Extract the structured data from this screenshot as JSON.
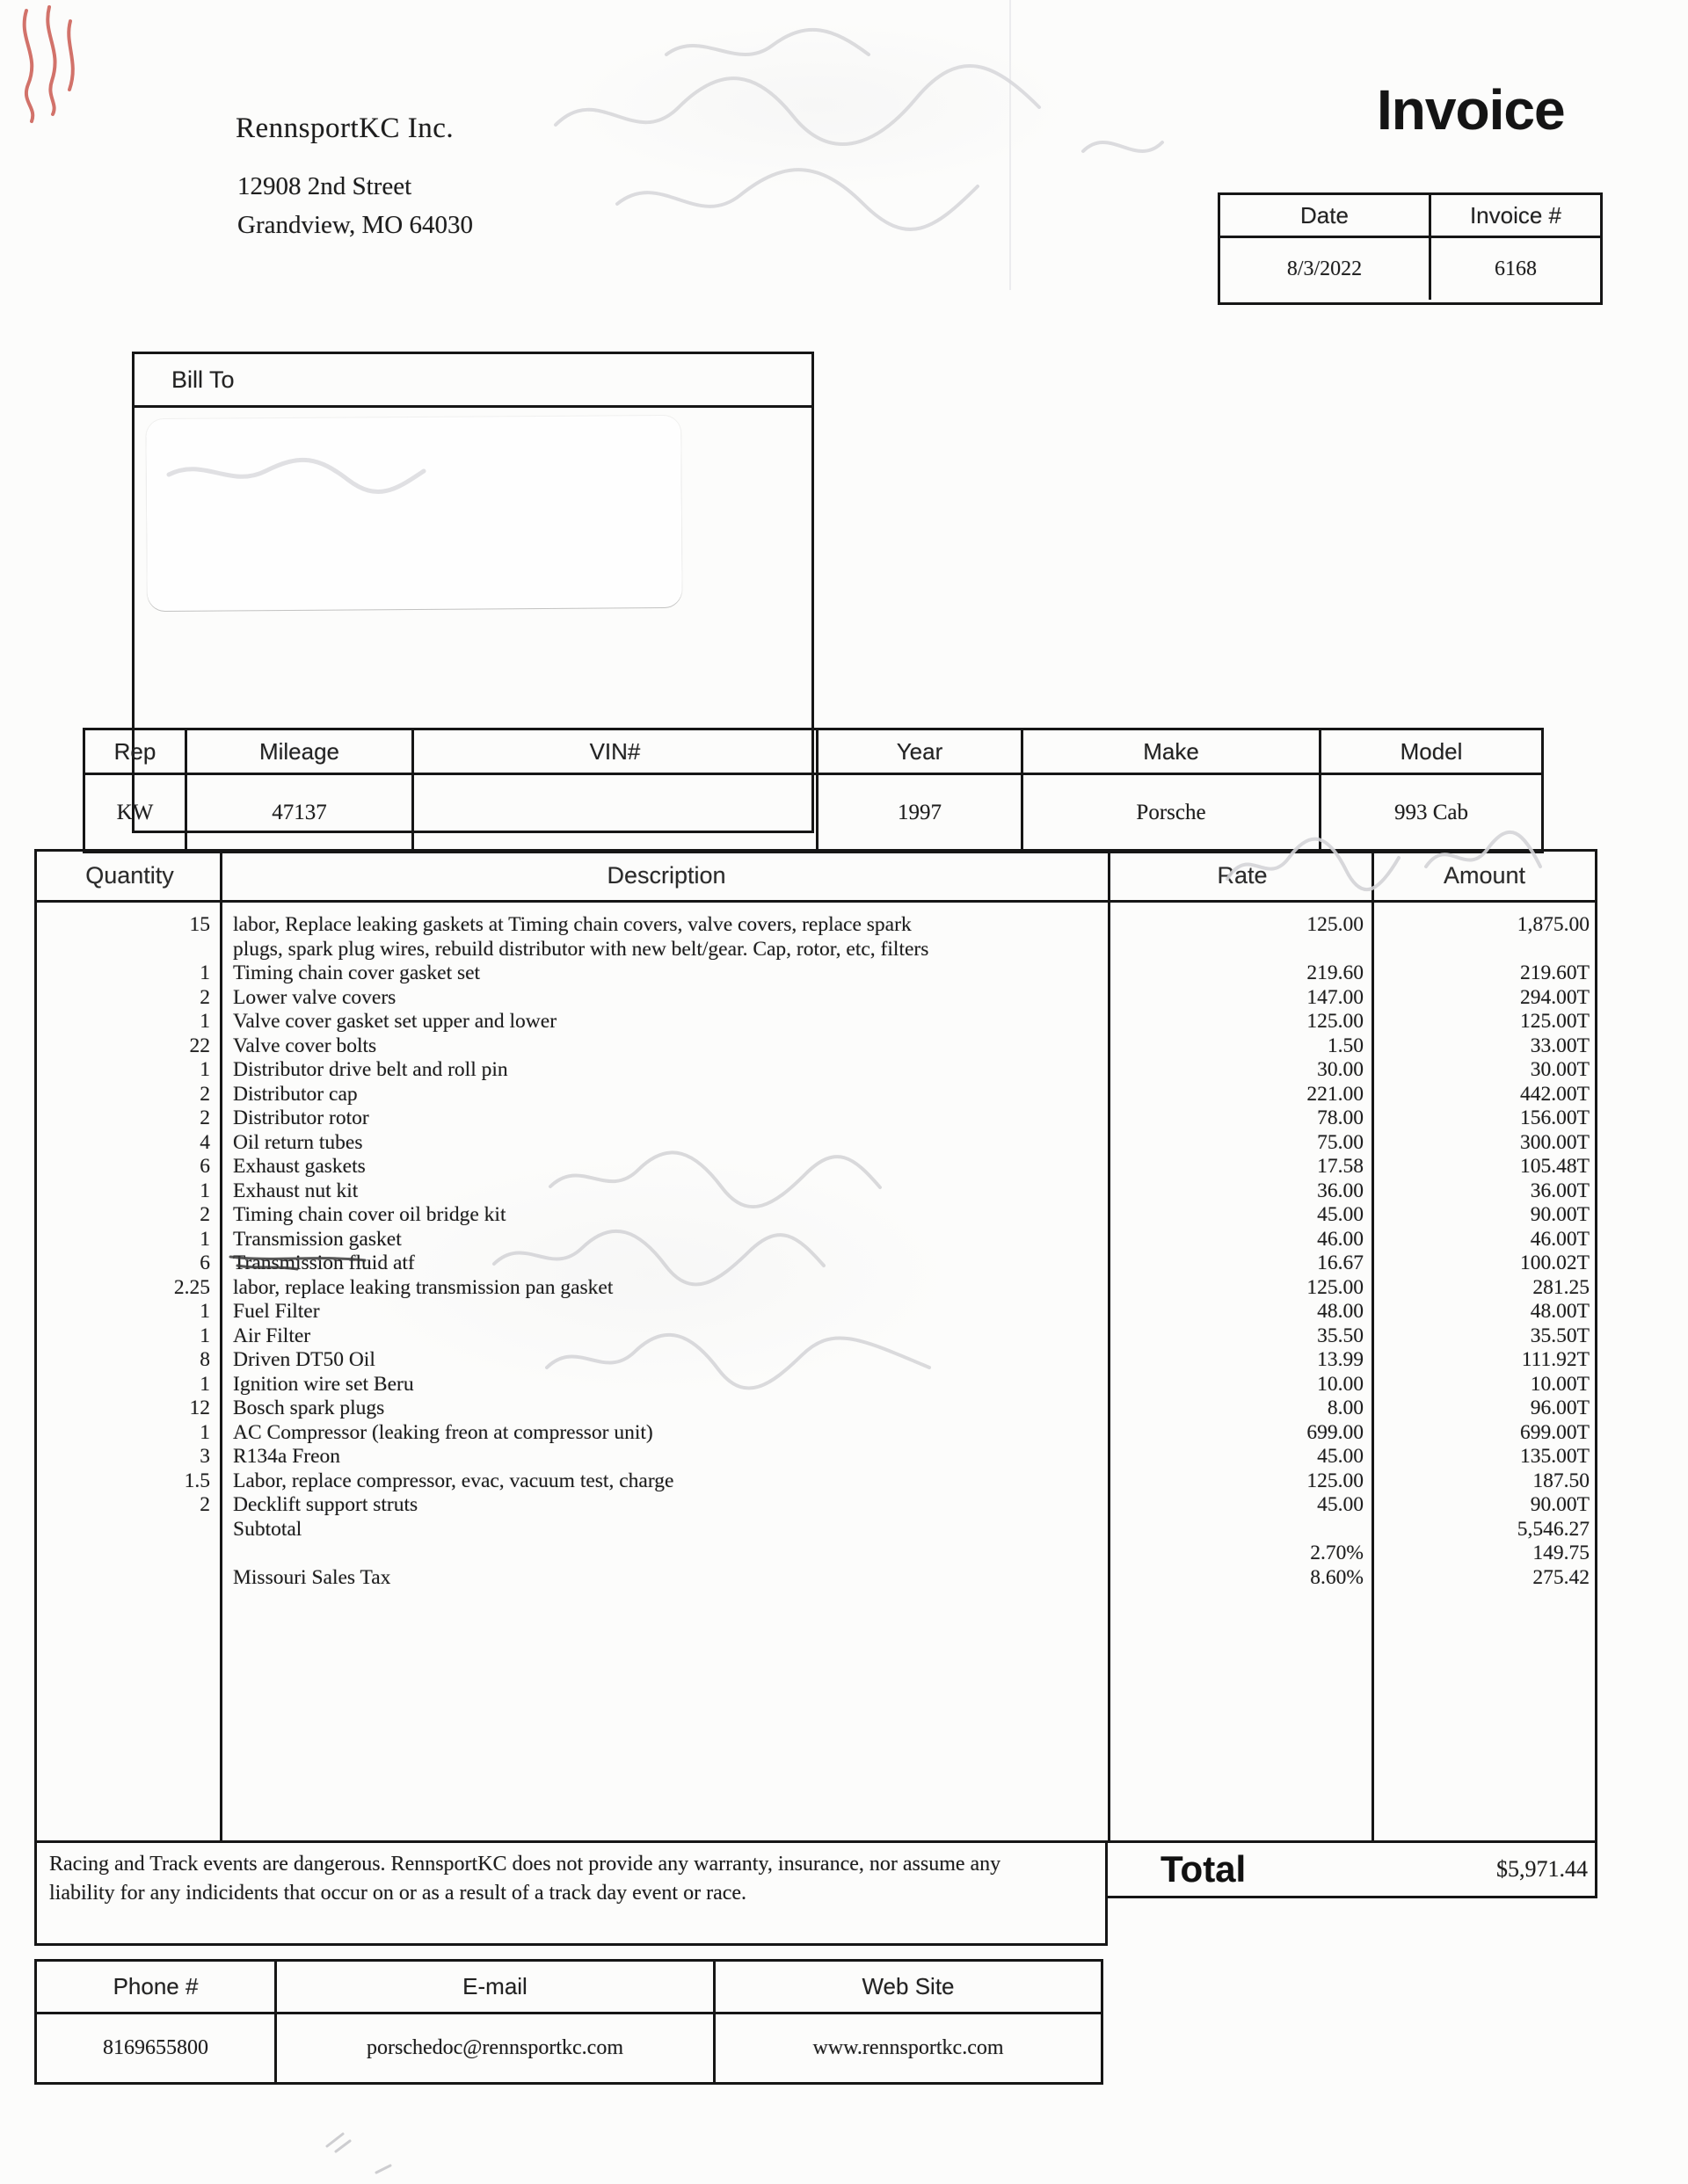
{
  "invoice": {
    "title": "Invoice",
    "company": {
      "name": "RennsportKC Inc.",
      "address_line1": "12908 2nd Street",
      "address_line2": "Grandview, MO 64030"
    },
    "meta": {
      "date_label": "Date",
      "date_value": "8/3/2022",
      "number_label": "Invoice #",
      "number_value": "6168"
    },
    "bill_to": {
      "label": "Bill To",
      "value": ""
    },
    "vehicle": {
      "headers": [
        "Rep",
        "Mileage",
        "VIN#",
        "Year",
        "Make",
        "Model"
      ],
      "values": [
        "KW",
        "47137",
        "",
        "1997",
        "Porsche",
        "993 Cab"
      ]
    },
    "items": {
      "headers": [
        "Quantity",
        "Description",
        "Rate",
        "Amount"
      ],
      "rows": [
        {
          "qty": "15",
          "description": "labor, Replace leaking gaskets at Timing chain covers, valve covers, replace spark\nplugs, spark plug wires, rebuild distributor with new belt/gear. Cap, rotor, etc, filters",
          "rate": "125.00",
          "amount": "1,875.00"
        },
        {
          "qty": "1",
          "description": "Timing chain cover gasket set",
          "rate": "219.60",
          "amount": "219.60T"
        },
        {
          "qty": "2",
          "description": "Lower valve covers",
          "rate": "147.00",
          "amount": "294.00T"
        },
        {
          "qty": "1",
          "description": "Valve cover gasket set upper and lower",
          "rate": "125.00",
          "amount": "125.00T"
        },
        {
          "qty": "22",
          "description": "Valve cover bolts",
          "rate": "1.50",
          "amount": "33.00T"
        },
        {
          "qty": "1",
          "description": "Distributor drive belt and roll pin",
          "rate": "30.00",
          "amount": "30.00T"
        },
        {
          "qty": "2",
          "description": "Distributor cap",
          "rate": "221.00",
          "amount": "442.00T"
        },
        {
          "qty": "2",
          "description": "Distributor rotor",
          "rate": "78.00",
          "amount": "156.00T"
        },
        {
          "qty": "4",
          "description": "Oil return tubes",
          "rate": "75.00",
          "amount": "300.00T"
        },
        {
          "qty": "6",
          "description": "Exhaust gaskets",
          "rate": "17.58",
          "amount": "105.48T"
        },
        {
          "qty": "1",
          "description": "Exhaust nut kit",
          "rate": "36.00",
          "amount": "36.00T"
        },
        {
          "qty": "2",
          "description": "Timing chain cover oil bridge kit",
          "rate": "45.00",
          "amount": "90.00T"
        },
        {
          "qty": "1",
          "description": "Transmission gasket",
          "rate": "46.00",
          "amount": "46.00T"
        },
        {
          "qty": "6",
          "description": "Transmission fluid atf",
          "rate": "16.67",
          "amount": "100.02T"
        },
        {
          "qty": "2.25",
          "description": "labor, replace leaking transmission pan gasket",
          "rate": "125.00",
          "amount": "281.25"
        },
        {
          "qty": "1",
          "description": "Fuel Filter",
          "rate": "48.00",
          "amount": "48.00T"
        },
        {
          "qty": "1",
          "description": "Air Filter",
          "rate": "35.50",
          "amount": "35.50T"
        },
        {
          "qty": "8",
          "description": "Driven DT50 Oil",
          "rate": "13.99",
          "amount": "111.92T"
        },
        {
          "qty": "1",
          "description": "Ignition wire set Beru",
          "rate": "10.00",
          "amount": "10.00T"
        },
        {
          "qty": "12",
          "description": "Bosch spark plugs",
          "rate": "8.00",
          "amount": "96.00T"
        },
        {
          "qty": "1",
          "description": "AC Compressor (leaking freon at compressor unit)",
          "rate": "699.00",
          "amount": "699.00T"
        },
        {
          "qty": "3",
          "description": "R134a Freon",
          "rate": "45.00",
          "amount": "135.00T"
        },
        {
          "qty": "1.5",
          "description": "Labor, replace compressor, evac, vacuum test, charge",
          "rate": "125.00",
          "amount": "187.50"
        },
        {
          "qty": "2",
          "description": "Decklift support struts",
          "rate": "45.00",
          "amount": "90.00T"
        },
        {
          "qty": "",
          "description": "Subtotal",
          "rate": "",
          "amount": "5,546.27"
        },
        {
          "qty": "",
          "description": "",
          "rate": "2.70%",
          "amount": "149.75"
        },
        {
          "qty": "",
          "description": "",
          "rate": "",
          "amount": ""
        },
        {
          "qty": "",
          "description": "Missouri Sales Tax",
          "rate": "8.60%",
          "amount": "275.42"
        }
      ]
    },
    "disclaimer": "Racing and Track events are dangerous.  RennsportKC does not provide any warranty, insurance, nor assume any liability for any indicidents that occur on or as a result of a track day event or race.",
    "total": {
      "label": "Total",
      "value": "$5,971.44"
    },
    "footer": {
      "headers": [
        "Phone #",
        "E-mail",
        "Web Site"
      ],
      "values": [
        "8169655800",
        "porschedoc@rennsportkc.com",
        "www.rennsportkc.com"
      ]
    },
    "colors": {
      "ink": "#1d1d1d",
      "table_border": "#161616",
      "annotation_red": "#c4453a",
      "pencil_gray": "#d5d5d8"
    }
  }
}
